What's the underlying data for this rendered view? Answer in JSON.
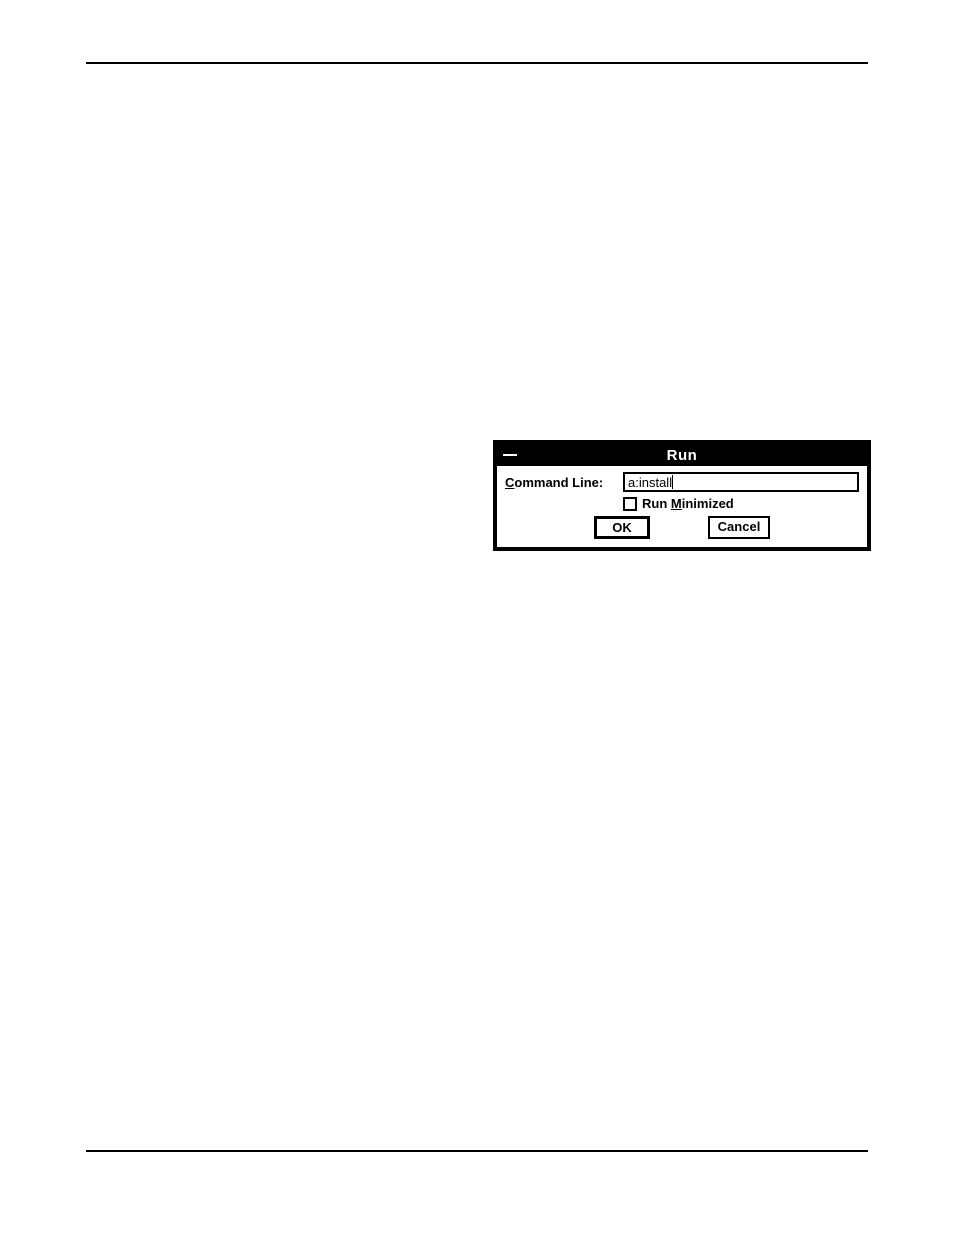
{
  "dialog": {
    "title": "Run",
    "command_line_label": "ommand Line:",
    "command_line_prefix": "C",
    "command_line_value": "a:install",
    "run_minimized_label_prefix": "Run ",
    "run_minimized_label_underlined": "M",
    "run_minimized_label_suffix": "inimized",
    "ok_label": "OK",
    "cancel_label": "Cancel"
  }
}
